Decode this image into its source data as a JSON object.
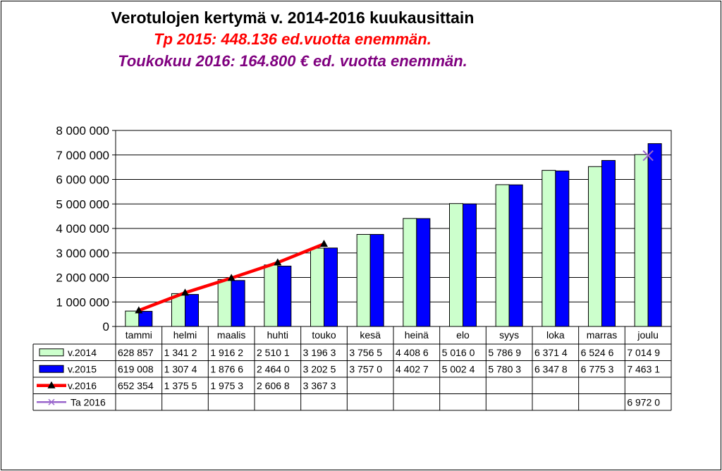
{
  "titles": {
    "main": "Verotulojen kertymä v. 2014-2016  kuukausittain",
    "line2": "Tp 2015: 448.136 ed.vuotta enemmän.",
    "line3": "Toukokuu 2016: 164.800 € ed. vuotta enemmän."
  },
  "colors": {
    "v2014": "#ccffcc",
    "v2015": "#0000ff",
    "v2016": "#ff0000",
    "ta2016": "#9966cc",
    "title_red": "#ff0000",
    "title_purple": "#7f007f"
  },
  "chart_data": {
    "type": "bar",
    "categories": [
      "tammi",
      "helmi",
      "maalis",
      "huhti",
      "touko",
      "kesä",
      "heinä",
      "elo",
      "syys",
      "loka",
      "marras",
      "joulu"
    ],
    "ylim": [
      0,
      8000000
    ],
    "yticks": [
      0,
      1000000,
      2000000,
      3000000,
      4000000,
      5000000,
      6000000,
      7000000,
      8000000
    ],
    "ytick_labels": [
      "0",
      "1 000 000",
      "2 000 000",
      "3 000 000",
      "4 000 000",
      "5 000 000",
      "6 000 000",
      "7 000 000",
      "8 000 000"
    ],
    "grid": true,
    "series": [
      {
        "name": "v.2014",
        "kind": "bar",
        "values": [
          628857,
          1341200,
          1916200,
          2510100,
          3196300,
          3756500,
          4408600,
          5016000,
          5786900,
          6371400,
          6524600,
          7014900
        ],
        "table_labels": [
          "628 857",
          "1 341 2",
          "1 916 2",
          "2 510 1",
          "3 196 3",
          "3 756 5",
          "4 408 6",
          "5 016 0",
          "5 786 9",
          "6 371 4",
          "6 524 6",
          "7 014 9"
        ]
      },
      {
        "name": "v.2015",
        "kind": "bar",
        "values": [
          619008,
          1307400,
          1876600,
          2464000,
          3202500,
          3757000,
          4402700,
          5002400,
          5780300,
          6347800,
          6775300,
          7463100
        ],
        "table_labels": [
          "619 008",
          "1 307 4",
          "1 876 6",
          "2 464 0",
          "3 202 5",
          "3 757 0",
          "4 402 7",
          "5 002 4",
          "5 780 3",
          "6 347 8",
          "6 775 3",
          "7 463 1"
        ]
      },
      {
        "name": "v.2016",
        "kind": "line",
        "values": [
          652354,
          1375500,
          1975300,
          2606800,
          3367300,
          null,
          null,
          null,
          null,
          null,
          null,
          null
        ],
        "table_labels": [
          "652 354",
          "1 375 5",
          "1 975 3",
          "2 606 8",
          "3 367 3",
          "",
          "",
          "",
          "",
          "",
          "",
          ""
        ]
      },
      {
        "name": "Ta 2016",
        "kind": "marker",
        "values": [
          null,
          null,
          null,
          null,
          null,
          null,
          null,
          null,
          null,
          null,
          null,
          6972000
        ],
        "table_labels": [
          "",
          "",
          "",
          "",
          "",
          "",
          "",
          "",
          "",
          "",
          "",
          "6 972 0"
        ]
      }
    ]
  }
}
